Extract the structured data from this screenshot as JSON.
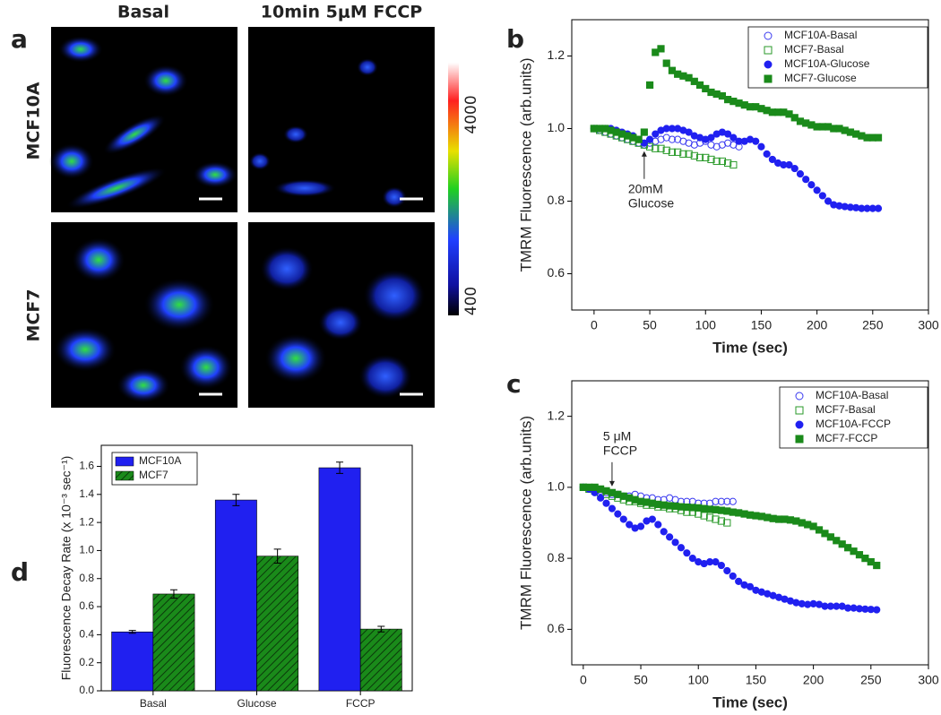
{
  "panel_a": {
    "label": "a",
    "columns": [
      "Basal",
      "10min 5μM FCCP"
    ],
    "rows": [
      "MCF10A",
      "MCF7"
    ],
    "colorbar": [
      "4000",
      "400"
    ]
  },
  "chart_data": [
    {
      "type": "scatter",
      "panel": "b",
      "xlabel": "Time (sec)",
      "ylabel": "TMRM Fluorescence (arb.units)",
      "xlim": [
        -20,
        300
      ],
      "ylim": [
        0.5,
        1.3
      ],
      "xticks": [
        0,
        50,
        100,
        150,
        200,
        250,
        300
      ],
      "yticks": [
        0.6,
        0.8,
        {
          "value": 1.0,
          "label": "1.0"
        },
        1.2
      ],
      "annotation": [
        "20mM",
        "Glucose"
      ],
      "series": [
        {
          "name": "MCF10A-Basal",
          "color": "#3a3af0",
          "marker": "circle",
          "filled": false,
          "x": [
            0,
            5,
            10,
            15,
            20,
            25,
            30,
            35,
            40,
            45,
            50,
            55,
            60,
            65,
            70,
            75,
            80,
            85,
            90,
            95,
            100,
            105,
            110,
            115,
            120,
            125,
            130
          ],
          "values": [
            1.0,
            0.995,
            0.99,
            0.985,
            0.98,
            0.975,
            0.97,
            0.965,
            0.96,
            0.955,
            0.96,
            0.965,
            0.97,
            0.975,
            0.97,
            0.97,
            0.965,
            0.96,
            0.955,
            0.96,
            0.965,
            0.955,
            0.95,
            0.955,
            0.96,
            0.955,
            0.95
          ]
        },
        {
          "name": "MCF7-Basal",
          "color": "#2a9a2a",
          "marker": "square",
          "filled": false,
          "x": [
            0,
            5,
            10,
            15,
            20,
            25,
            30,
            35,
            40,
            45,
            50,
            55,
            60,
            65,
            70,
            75,
            80,
            85,
            90,
            95,
            100,
            105,
            110,
            115,
            120,
            125
          ],
          "values": [
            1.0,
            0.995,
            0.99,
            0.985,
            0.98,
            0.975,
            0.97,
            0.965,
            0.96,
            0.955,
            0.95,
            0.945,
            0.945,
            0.94,
            0.935,
            0.935,
            0.93,
            0.93,
            0.925,
            0.92,
            0.92,
            0.915,
            0.91,
            0.91,
            0.905,
            0.9
          ]
        },
        {
          "name": "MCF10A-Glucose",
          "color": "#2020f0",
          "marker": "circle",
          "filled": true,
          "x": [
            0,
            5,
            10,
            15,
            20,
            25,
            30,
            35,
            40,
            45,
            50,
            55,
            60,
            65,
            70,
            75,
            80,
            85,
            90,
            95,
            100,
            105,
            110,
            115,
            120,
            125,
            130,
            135,
            140,
            145,
            150,
            155,
            160,
            165,
            170,
            175,
            180,
            185,
            190,
            195,
            200,
            205,
            210,
            215,
            220,
            225,
            230,
            235,
            240,
            245,
            250,
            255
          ],
          "values": [
            1.0,
            1.0,
            1.0,
            1.0,
            0.995,
            0.99,
            0.985,
            0.98,
            0.97,
            0.96,
            0.97,
            0.985,
            0.995,
            1.0,
            1.0,
            1.0,
            0.995,
            0.99,
            0.98,
            0.975,
            0.97,
            0.975,
            0.985,
            0.99,
            0.985,
            0.975,
            0.965,
            0.965,
            0.97,
            0.965,
            0.95,
            0.93,
            0.915,
            0.905,
            0.9,
            0.9,
            0.89,
            0.875,
            0.86,
            0.845,
            0.83,
            0.815,
            0.8,
            0.79,
            0.787,
            0.785,
            0.783,
            0.782,
            0.78,
            0.78,
            0.78,
            0.78
          ]
        },
        {
          "name": "MCF7-Glucose",
          "color": "#1a8a1a",
          "marker": "square",
          "filled": true,
          "x": [
            0,
            5,
            10,
            15,
            20,
            25,
            30,
            35,
            40,
            45,
            50,
            55,
            60,
            65,
            70,
            75,
            80,
            85,
            90,
            95,
            100,
            105,
            110,
            115,
            120,
            125,
            130,
            135,
            140,
            145,
            150,
            155,
            160,
            165,
            170,
            175,
            180,
            185,
            190,
            195,
            200,
            205,
            210,
            215,
            220,
            225,
            230,
            235,
            240,
            245,
            250,
            255
          ],
          "values": [
            1.0,
            1.0,
            1.0,
            0.995,
            0.99,
            0.985,
            0.98,
            0.975,
            0.97,
            0.99,
            1.12,
            1.21,
            1.22,
            1.18,
            1.16,
            1.15,
            1.145,
            1.14,
            1.13,
            1.12,
            1.11,
            1.1,
            1.095,
            1.09,
            1.08,
            1.075,
            1.07,
            1.065,
            1.06,
            1.06,
            1.055,
            1.05,
            1.045,
            1.045,
            1.045,
            1.04,
            1.03,
            1.02,
            1.015,
            1.01,
            1.005,
            1.005,
            1.005,
            1.0,
            1.0,
            0.995,
            0.99,
            0.985,
            0.98,
            0.975,
            0.975,
            0.975
          ]
        }
      ]
    },
    {
      "type": "scatter",
      "panel": "c",
      "xlabel": "Time (sec)",
      "ylabel": "TMRM Fluorescence (arb.units)",
      "xlim": [
        -10,
        300
      ],
      "ylim": [
        0.5,
        1.3
      ],
      "xticks": [
        0,
        50,
        100,
        150,
        200,
        250,
        300
      ],
      "yticks": [
        0.6,
        0.8,
        {
          "value": 1.0,
          "label": "1.0"
        },
        1.2
      ],
      "annotation": [
        "5 μM",
        "FCCP"
      ],
      "series": [
        {
          "name": "MCF10A-Basal",
          "color": "#3a3af0",
          "marker": "circle",
          "filled": false,
          "x": [
            0,
            5,
            10,
            15,
            20,
            25,
            30,
            35,
            40,
            45,
            50,
            55,
            60,
            65,
            70,
            75,
            80,
            85,
            90,
            95,
            100,
            105,
            110,
            115,
            120,
            125,
            130
          ],
          "values": [
            1.0,
            0.995,
            0.99,
            0.99,
            0.985,
            0.98,
            0.98,
            0.975,
            0.975,
            0.98,
            0.975,
            0.97,
            0.97,
            0.965,
            0.965,
            0.97,
            0.965,
            0.96,
            0.96,
            0.96,
            0.955,
            0.955,
            0.955,
            0.96,
            0.96,
            0.96,
            0.96
          ]
        },
        {
          "name": "MCF7-Basal",
          "color": "#2a9a2a",
          "marker": "square",
          "filled": false,
          "x": [
            0,
            5,
            10,
            15,
            20,
            25,
            30,
            35,
            40,
            45,
            50,
            55,
            60,
            65,
            70,
            75,
            80,
            85,
            90,
            95,
            100,
            105,
            110,
            115,
            120,
            125
          ],
          "values": [
            1.0,
            0.995,
            0.99,
            0.985,
            0.98,
            0.975,
            0.97,
            0.965,
            0.96,
            0.96,
            0.955,
            0.95,
            0.95,
            0.945,
            0.945,
            0.94,
            0.94,
            0.935,
            0.93,
            0.93,
            0.925,
            0.92,
            0.915,
            0.91,
            0.905,
            0.9
          ]
        },
        {
          "name": "MCF10A-FCCP",
          "color": "#2020f0",
          "marker": "circle",
          "filled": true,
          "x": [
            0,
            5,
            10,
            15,
            20,
            25,
            30,
            35,
            40,
            45,
            50,
            55,
            60,
            65,
            70,
            75,
            80,
            85,
            90,
            95,
            100,
            105,
            110,
            115,
            120,
            125,
            130,
            135,
            140,
            145,
            150,
            155,
            160,
            165,
            170,
            175,
            180,
            185,
            190,
            195,
            200,
            205,
            210,
            215,
            220,
            225,
            230,
            235,
            240,
            245,
            250,
            255
          ],
          "values": [
            1.0,
            0.995,
            0.985,
            0.97,
            0.955,
            0.94,
            0.925,
            0.91,
            0.895,
            0.885,
            0.89,
            0.905,
            0.91,
            0.895,
            0.875,
            0.86,
            0.845,
            0.83,
            0.815,
            0.8,
            0.79,
            0.785,
            0.79,
            0.79,
            0.78,
            0.765,
            0.75,
            0.735,
            0.725,
            0.72,
            0.71,
            0.705,
            0.7,
            0.695,
            0.69,
            0.685,
            0.68,
            0.675,
            0.672,
            0.67,
            0.672,
            0.67,
            0.665,
            0.665,
            0.665,
            0.665,
            0.66,
            0.66,
            0.658,
            0.657,
            0.656,
            0.655
          ]
        },
        {
          "name": "MCF7-FCCP",
          "color": "#1a8a1a",
          "marker": "square",
          "filled": true,
          "x": [
            0,
            5,
            10,
            15,
            20,
            25,
            30,
            35,
            40,
            45,
            50,
            55,
            60,
            65,
            70,
            75,
            80,
            85,
            90,
            95,
            100,
            105,
            110,
            115,
            120,
            125,
            130,
            135,
            140,
            145,
            150,
            155,
            160,
            165,
            170,
            175,
            180,
            185,
            190,
            195,
            200,
            205,
            210,
            215,
            220,
            225,
            230,
            235,
            240,
            245,
            250,
            255
          ],
          "values": [
            1.0,
            1.0,
            1.0,
            0.995,
            0.99,
            0.985,
            0.98,
            0.975,
            0.97,
            0.965,
            0.96,
            0.958,
            0.955,
            0.952,
            0.95,
            0.948,
            0.947,
            0.945,
            0.944,
            0.943,
            0.942,
            0.94,
            0.938,
            0.937,
            0.935,
            0.933,
            0.93,
            0.928,
            0.925,
            0.922,
            0.92,
            0.918,
            0.915,
            0.912,
            0.91,
            0.91,
            0.908,
            0.905,
            0.9,
            0.895,
            0.89,
            0.88,
            0.87,
            0.86,
            0.85,
            0.84,
            0.83,
            0.82,
            0.81,
            0.8,
            0.79,
            0.78
          ]
        }
      ]
    },
    {
      "type": "bar",
      "panel": "d",
      "ylabel": "Fluorescence Decay Rate (x 10⁻³ sec⁻¹)",
      "categories": [
        "Basal",
        "Glucose",
        "FCCP"
      ],
      "ylim": [
        0,
        1.75
      ],
      "yticks": [
        {
          "value": 0,
          "label": "0.0"
        },
        0.2,
        0.4,
        0.6,
        0.8,
        {
          "value": 1,
          "label": "1.0"
        },
        1.2,
        1.4,
        1.6
      ],
      "series": [
        {
          "name": "MCF10A",
          "color": "#2020f0",
          "hatch": false,
          "values": [
            0.42,
            1.36,
            1.59
          ],
          "errors": [
            0.01,
            0.04,
            0.04
          ]
        },
        {
          "name": "MCF7",
          "color": "#1a8a1a",
          "hatch": true,
          "values": [
            0.69,
            0.96,
            0.44
          ],
          "errors": [
            0.03,
            0.05,
            0.02
          ]
        }
      ]
    }
  ]
}
